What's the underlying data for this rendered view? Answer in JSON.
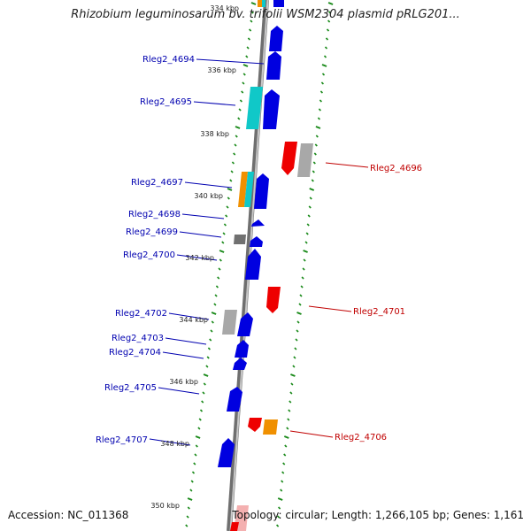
{
  "header": {
    "title": "Rhizobium leguminosarum bv. trifolii WSM2304 plasmid pRLG201..."
  },
  "footer": {
    "accession": "Accession: NC_011368",
    "topology": "Topology: circular; Length: 1,266,105 bp; Genes: 1,161"
  },
  "colors": {
    "forward_gene": "#0000e0",
    "reverse_gene": "#ee0000",
    "cyan_gene": "#10c8c8",
    "orange_gene": "#f09000",
    "gray_gene": "#a8a8a8",
    "tick": "#1a8a1a",
    "backbone": "#9a9a9a",
    "blue_label": "#0000b0",
    "red_label": "#c00000"
  },
  "scale_labels": [
    "334 kbp",
    "336 kbp",
    "338 kbp",
    "340 kbp",
    "342 kbp",
    "344 kbp",
    "346 kbp",
    "348 kbp",
    "350 kbp"
  ],
  "gene_labels": {
    "left": [
      "Rleg2_4694",
      "Rleg2_4695",
      "Rleg2_4697",
      "Rleg2_4698",
      "Rleg2_4699",
      "Rleg2_4700",
      "Rleg2_4702",
      "Rleg2_4703",
      "Rleg2_4704",
      "Rleg2_4705",
      "Rleg2_4707"
    ],
    "right": [
      "Rleg2_4696",
      "Rleg2_4701",
      "Rleg2_4706"
    ]
  }
}
